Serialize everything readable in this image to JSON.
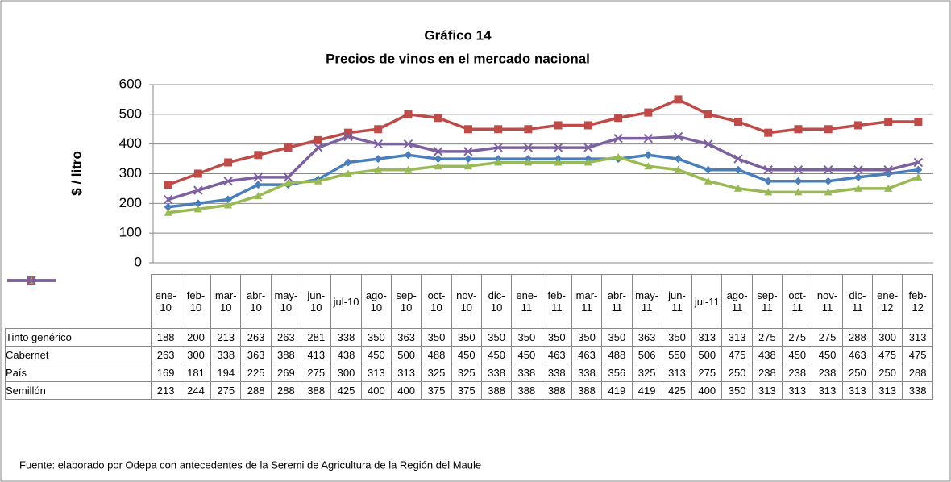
{
  "chart_data": {
    "type": "line",
    "title": "Gráfico 14",
    "subtitle": "Precios de vinos en el mercado nacional",
    "y_label": "$ / litro",
    "source": "Fuente: elaborado por Odepa con antecedentes de la Seremi de Agricultura de la Región del Maule",
    "categories": [
      "ene-10",
      "feb-10",
      "mar-10",
      "abr-10",
      "may-10",
      "jun-10",
      "jul-10",
      "ago-10",
      "sep-10",
      "oct-10",
      "nov-10",
      "dic-10",
      "ene-11",
      "feb-11",
      "mar-11",
      "abr-11",
      "may-11",
      "jun-11",
      "jul-11",
      "ago-11",
      "sep-11",
      "oct-11",
      "nov-11",
      "dic-11",
      "ene-12",
      "feb-12"
    ],
    "series": [
      {
        "name": "Tinto genérico",
        "color": "#4a7ebb",
        "marker": "diamond",
        "values": [
          188,
          200,
          213,
          263,
          263,
          281,
          338,
          350,
          363,
          350,
          350,
          350,
          350,
          350,
          350,
          350,
          363,
          350,
          313,
          313,
          275,
          275,
          275,
          288,
          300,
          313
        ]
      },
      {
        "name": "Cabernet",
        "color": "#be4b48",
        "marker": "square",
        "values": [
          263,
          300,
          338,
          363,
          388,
          413,
          438,
          450,
          500,
          488,
          450,
          450,
          450,
          463,
          463,
          488,
          506,
          550,
          500,
          475,
          438,
          450,
          450,
          463,
          475,
          475
        ]
      },
      {
        "name": "País",
        "color": "#98b954",
        "marker": "triangle",
        "values": [
          169,
          181,
          194,
          225,
          269,
          275,
          300,
          313,
          313,
          325,
          325,
          338,
          338,
          338,
          338,
          356,
          325,
          313,
          275,
          250,
          238,
          238,
          238,
          250,
          250,
          288
        ]
      },
      {
        "name": "Semillón",
        "color": "#7d60a0",
        "marker": "x",
        "values": [
          213,
          244,
          275,
          288,
          288,
          388,
          425,
          400,
          400,
          375,
          375,
          388,
          388,
          388,
          388,
          419,
          419,
          425,
          400,
          350,
          313,
          313,
          313,
          313,
          313,
          338
        ]
      }
    ],
    "ylim": [
      0,
      600
    ],
    "yticks": [
      0,
      100,
      200,
      300,
      400,
      500,
      600
    ],
    "grid": true
  }
}
